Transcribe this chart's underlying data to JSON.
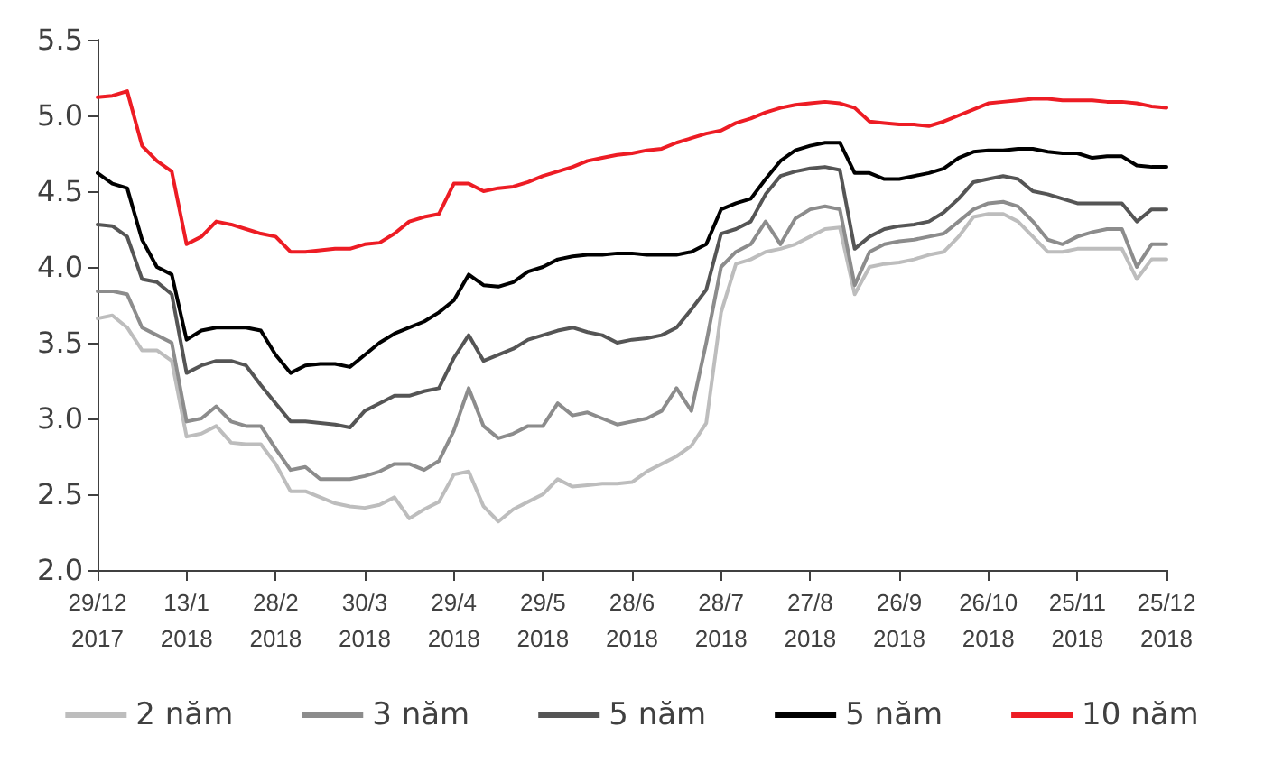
{
  "chart_data": {
    "type": "line",
    "categories": [
      "29/12\n2017",
      null,
      null,
      null,
      null,
      null,
      "13/1\n2018",
      null,
      null,
      null,
      null,
      null,
      "28/2\n2018",
      null,
      null,
      null,
      null,
      null,
      "30/3\n2018",
      null,
      null,
      null,
      null,
      null,
      "29/4\n2018",
      null,
      null,
      null,
      null,
      null,
      "29/5\n2018",
      null,
      null,
      null,
      null,
      null,
      "28/6\n2018",
      null,
      null,
      null,
      null,
      null,
      "28/7\n2018",
      null,
      null,
      null,
      null,
      null,
      "27/8\n2018",
      null,
      null,
      null,
      null,
      null,
      "26/9\n2018",
      null,
      null,
      null,
      null,
      null,
      "26/10\n2018",
      null,
      null,
      null,
      null,
      null,
      "25/11\n2018",
      null,
      null,
      null,
      null,
      null,
      "25/12\n2018"
    ],
    "series": [
      {
        "name": "2 năm",
        "color": "#bdbdbd",
        "values": [
          3.66,
          3.68,
          3.6,
          3.45,
          3.45,
          3.38,
          2.88,
          2.9,
          2.95,
          2.84,
          2.83,
          2.83,
          2.7,
          2.52,
          2.52,
          2.48,
          2.44,
          2.42,
          2.41,
          2.43,
          2.48,
          2.34,
          2.4,
          2.45,
          2.63,
          2.65,
          2.42,
          2.32,
          2.4,
          2.45,
          2.5,
          2.6,
          2.55,
          2.56,
          2.57,
          2.57,
          2.58,
          2.65,
          2.7,
          2.75,
          2.82,
          2.97,
          3.7,
          4.02,
          4.05,
          4.1,
          4.12,
          4.15,
          4.2,
          4.25,
          4.26,
          3.82,
          4.0,
          4.02,
          4.03,
          4.05,
          4.08,
          4.1,
          4.2,
          4.33,
          4.35,
          4.35,
          4.3,
          4.2,
          4.1,
          4.1,
          4.12,
          4.12,
          4.12,
          4.12,
          3.92,
          4.05,
          4.05
        ]
      },
      {
        "name": "3 năm",
        "color": "#8c8c8c",
        "values": [
          3.84,
          3.84,
          3.82,
          3.6,
          3.55,
          3.5,
          2.98,
          3.0,
          3.08,
          2.98,
          2.95,
          2.95,
          2.8,
          2.66,
          2.68,
          2.6,
          2.6,
          2.6,
          2.62,
          2.65,
          2.7,
          2.7,
          2.66,
          2.72,
          2.92,
          3.2,
          2.95,
          2.87,
          2.9,
          2.95,
          2.95,
          3.1,
          3.02,
          3.04,
          3.0,
          2.96,
          2.98,
          3.0,
          3.05,
          3.2,
          3.05,
          3.5,
          4.0,
          4.1,
          4.15,
          4.3,
          4.15,
          4.32,
          4.38,
          4.4,
          4.38,
          3.88,
          4.1,
          4.15,
          4.17,
          4.18,
          4.2,
          4.22,
          4.3,
          4.38,
          4.42,
          4.43,
          4.4,
          4.3,
          4.18,
          4.15,
          4.2,
          4.23,
          4.25,
          4.25,
          4.0,
          4.15,
          4.15
        ]
      },
      {
        "name": "5 năm",
        "color": "#555555",
        "values": [
          4.28,
          4.27,
          4.2,
          3.92,
          3.9,
          3.82,
          3.3,
          3.35,
          3.38,
          3.38,
          3.35,
          3.22,
          3.1,
          2.98,
          2.98,
          2.97,
          2.96,
          2.94,
          3.05,
          3.1,
          3.15,
          3.15,
          3.18,
          3.2,
          3.4,
          3.55,
          3.38,
          3.42,
          3.46,
          3.52,
          3.55,
          3.58,
          3.6,
          3.57,
          3.55,
          3.5,
          3.52,
          3.53,
          3.55,
          3.6,
          3.72,
          3.85,
          4.22,
          4.25,
          4.3,
          4.48,
          4.6,
          4.63,
          4.65,
          4.66,
          4.64,
          4.12,
          4.2,
          4.25,
          4.27,
          4.28,
          4.3,
          4.36,
          4.45,
          4.56,
          4.58,
          4.6,
          4.58,
          4.5,
          4.48,
          4.45,
          4.42,
          4.42,
          4.42,
          4.42,
          4.3,
          4.38,
          4.38
        ]
      },
      {
        "name": "5 năm",
        "color": "#000000",
        "values": [
          4.62,
          4.55,
          4.52,
          4.18,
          4.0,
          3.95,
          3.52,
          3.58,
          3.6,
          3.6,
          3.6,
          3.58,
          3.42,
          3.3,
          3.35,
          3.36,
          3.36,
          3.34,
          3.42,
          3.5,
          3.56,
          3.6,
          3.64,
          3.7,
          3.78,
          3.95,
          3.88,
          3.87,
          3.9,
          3.97,
          4.0,
          4.05,
          4.07,
          4.08,
          4.08,
          4.09,
          4.09,
          4.08,
          4.08,
          4.08,
          4.1,
          4.15,
          4.38,
          4.42,
          4.45,
          4.58,
          4.7,
          4.77,
          4.8,
          4.82,
          4.82,
          4.62,
          4.62,
          4.58,
          4.58,
          4.6,
          4.62,
          4.65,
          4.72,
          4.76,
          4.77,
          4.77,
          4.78,
          4.78,
          4.76,
          4.75,
          4.75,
          4.72,
          4.73,
          4.73,
          4.67,
          4.66,
          4.66
        ]
      },
      {
        "name": "10 năm",
        "color": "#ed1c24",
        "values": [
          5.12,
          5.13,
          5.16,
          4.8,
          4.7,
          4.63,
          4.15,
          4.2,
          4.3,
          4.28,
          4.25,
          4.22,
          4.2,
          4.1,
          4.1,
          4.11,
          4.12,
          4.12,
          4.15,
          4.16,
          4.22,
          4.3,
          4.33,
          4.35,
          4.55,
          4.55,
          4.5,
          4.52,
          4.53,
          4.56,
          4.6,
          4.63,
          4.66,
          4.7,
          4.72,
          4.74,
          4.75,
          4.77,
          4.78,
          4.82,
          4.85,
          4.88,
          4.9,
          4.95,
          4.98,
          5.02,
          5.05,
          5.07,
          5.08,
          5.09,
          5.08,
          5.05,
          4.96,
          4.95,
          4.94,
          4.94,
          4.93,
          4.96,
          5.0,
          5.04,
          5.08,
          5.09,
          5.1,
          5.11,
          5.11,
          5.1,
          5.1,
          5.1,
          5.09,
          5.09,
          5.08,
          5.06,
          5.05
        ]
      }
    ],
    "ylim": [
      2,
      5.5
    ],
    "yticks": [
      {
        "value": 2,
        "label": "2.0"
      },
      {
        "value": 2.5,
        "label": "2.5"
      },
      {
        "value": 3,
        "label": "3.0"
      },
      {
        "value": 3.5,
        "label": "3.5"
      },
      {
        "value": 4,
        "label": "4.0"
      },
      {
        "value": 4.5,
        "label": "4.5"
      },
      {
        "value": 5,
        "label": "5.0"
      },
      {
        "value": 5.5,
        "label": "5.5"
      }
    ],
    "grid": false,
    "legend": "bottom",
    "marker": "none",
    "line_style": "solid"
  }
}
